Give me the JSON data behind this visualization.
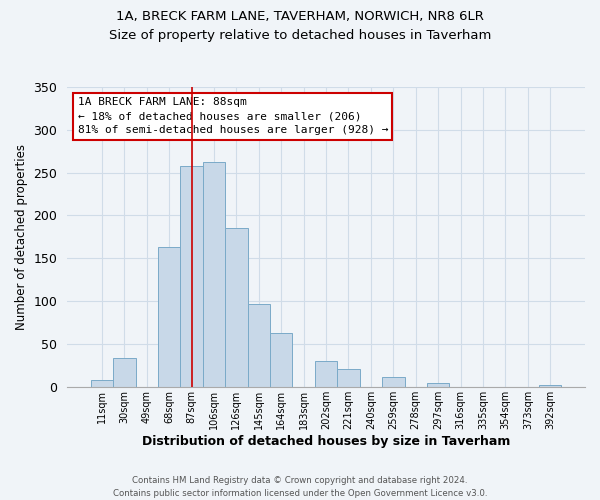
{
  "title": "1A, BRECK FARM LANE, TAVERHAM, NORWICH, NR8 6LR",
  "subtitle": "Size of property relative to detached houses in Taverham",
  "xlabel": "Distribution of detached houses by size in Taverham",
  "ylabel": "Number of detached properties",
  "bar_color": "#c8d8e8",
  "bar_edge_color": "#7aaac8",
  "categories": [
    "11sqm",
    "30sqm",
    "49sqm",
    "68sqm",
    "87sqm",
    "106sqm",
    "126sqm",
    "145sqm",
    "164sqm",
    "183sqm",
    "202sqm",
    "221sqm",
    "240sqm",
    "259sqm",
    "278sqm",
    "297sqm",
    "316sqm",
    "335sqm",
    "354sqm",
    "373sqm",
    "392sqm"
  ],
  "values": [
    8,
    34,
    0,
    163,
    258,
    262,
    185,
    97,
    63,
    0,
    30,
    21,
    0,
    11,
    0,
    5,
    0,
    0,
    0,
    0,
    2
  ],
  "ylim": [
    0,
    350
  ],
  "yticks": [
    0,
    50,
    100,
    150,
    200,
    250,
    300,
    350
  ],
  "property_label": "1A BRECK FARM LANE: 88sqm",
  "pct_smaller": 18,
  "n_smaller": 206,
  "pct_larger_semi": 81,
  "n_larger_semi": 928,
  "annotation_box_color": "#ffffff",
  "annotation_box_edge": "#cc0000",
  "marker_line_color": "#cc0000",
  "footer_line1": "Contains HM Land Registry data © Crown copyright and database right 2024.",
  "footer_line2": "Contains public sector information licensed under the Open Government Licence v3.0.",
  "highlight_bar_index": 4,
  "bg_color": "#f0f4f8",
  "grid_color": "#d0dce8",
  "property_bar_index": 4
}
